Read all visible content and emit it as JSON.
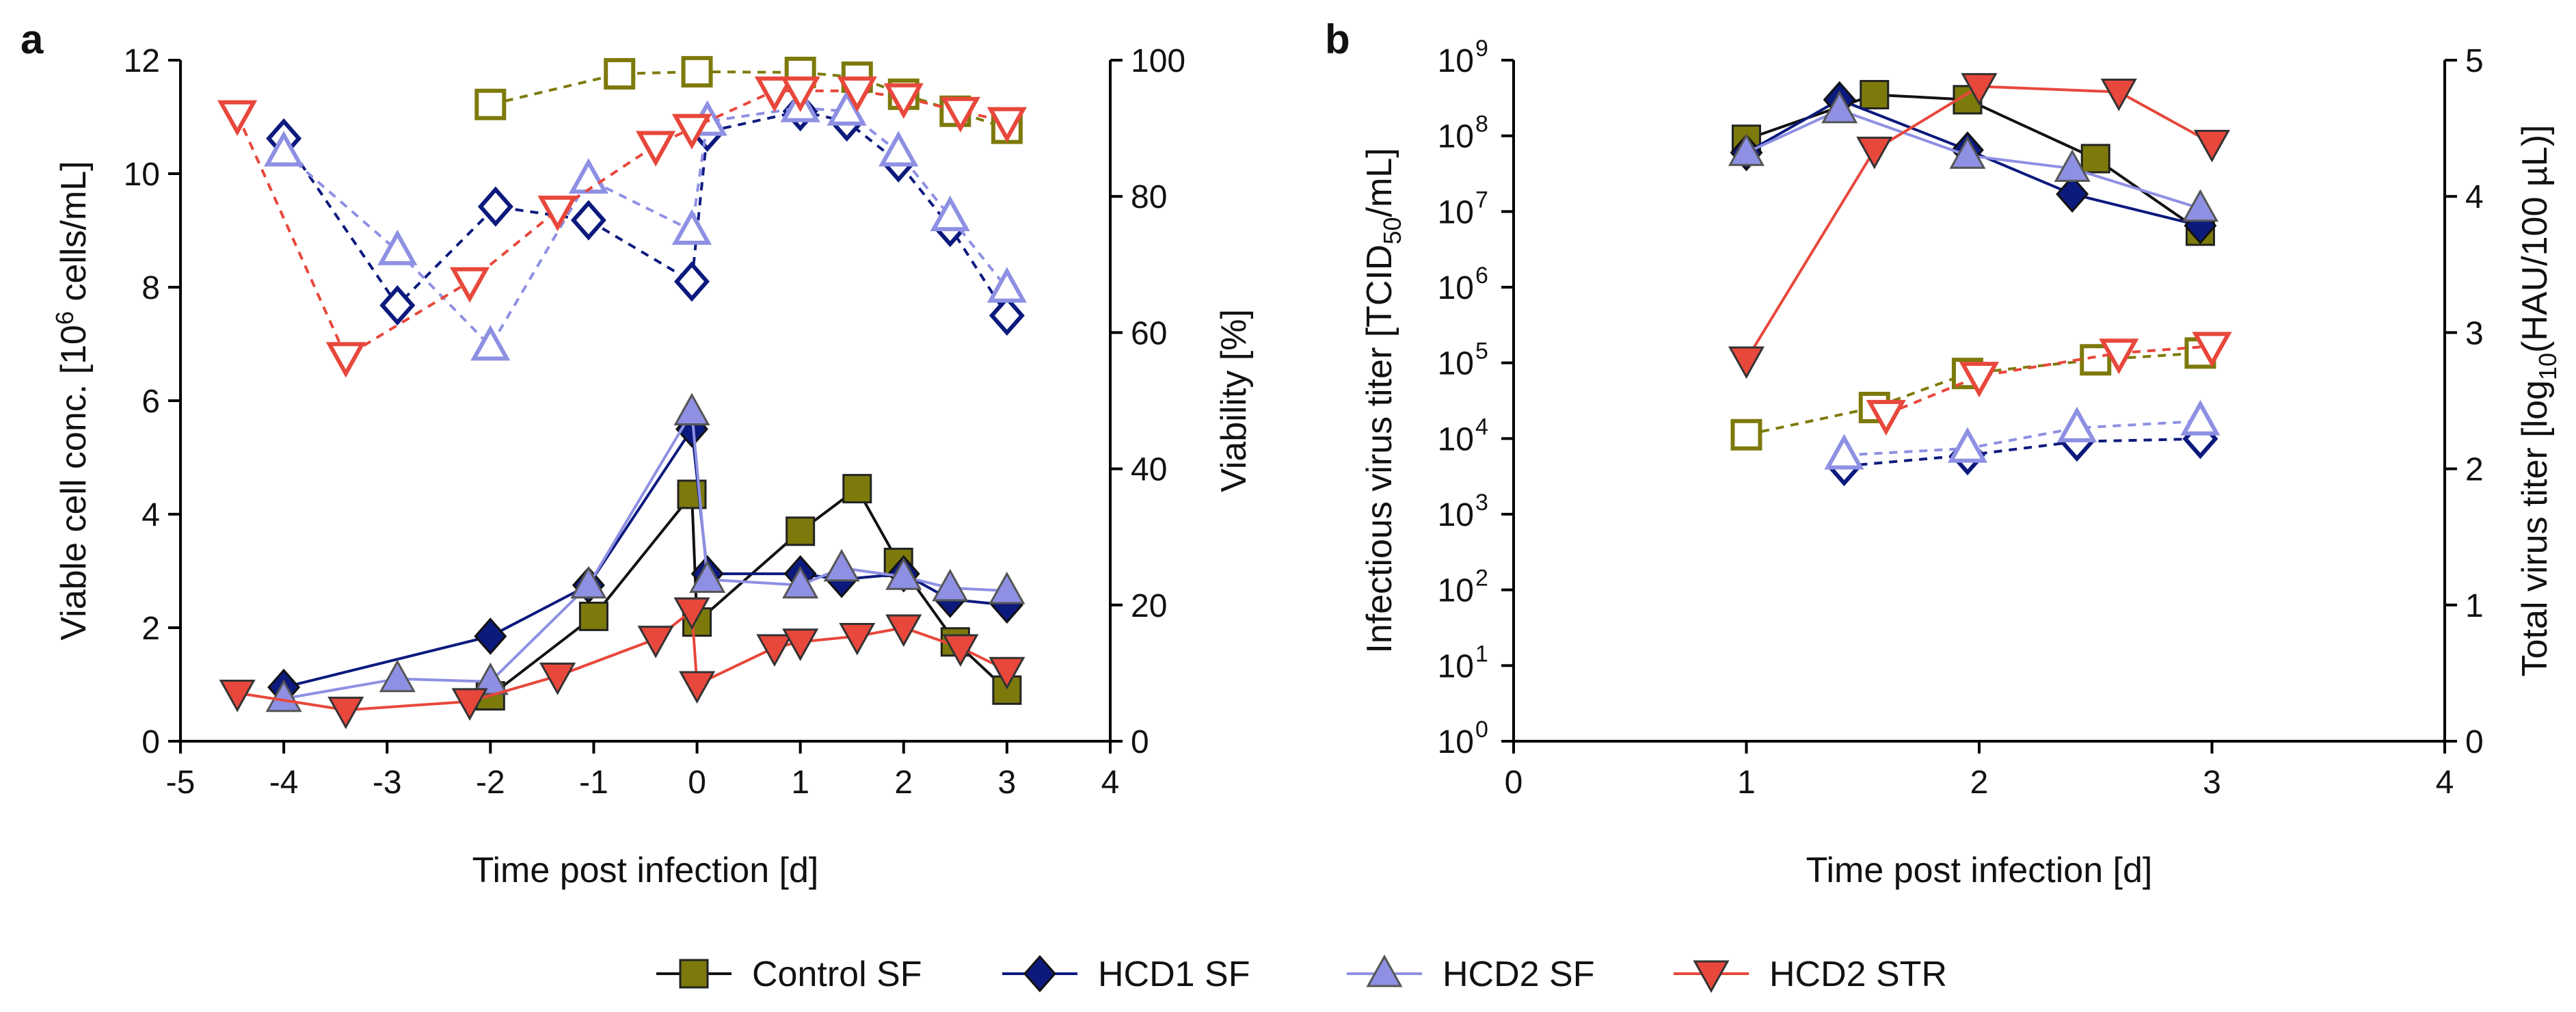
{
  "panel_labels": {
    "a": "a",
    "b": "b"
  },
  "axes": {
    "a": {
      "xlabel": "Time post infection [d]",
      "ylabel_left": "Viable cell conc. [10",
      "ylabel_left_sup": "6",
      "ylabel_left_tail": " cells/mL]",
      "ylabel_right": "Viability [%]"
    },
    "b": {
      "xlabel": "Time post infection [d]",
      "ylabel_left": "Infectious virus titer [TCID",
      "ylabel_left_sub": "50",
      "ylabel_left_tail": "/mL]",
      "ylabel_right": "Total virus titer [log",
      "ylabel_right_sub": "10",
      "ylabel_right_tail": "(HAU/100 µL)]"
    }
  },
  "legend": [
    {
      "label": "Control  SF",
      "color": "#7d7a0c",
      "marker": "square"
    },
    {
      "label": "HCD1 SF",
      "color": "#0c1a7d",
      "marker": "diamond"
    },
    {
      "label": "HCD2 SF",
      "color": "#8e90e3",
      "marker": "triangle-up"
    },
    {
      "label": "HCD2 STR",
      "color": "#e8473b",
      "marker": "triangle-down"
    }
  ],
  "chart_data": [
    {
      "type": "line",
      "title": "a",
      "xlabel": "Time post infection [d]",
      "ylabel": "Viable cell conc. [10^6 cells/mL]",
      "y2label": "Viability [%]",
      "xlim": [
        -5,
        4
      ],
      "ylim": [
        0,
        12
      ],
      "y2lim": [
        0,
        100
      ],
      "xticks": [
        "-5",
        "-4",
        "-3",
        "-2",
        "-1",
        "0",
        "1",
        "2",
        "3",
        "4"
      ],
      "yticks": [
        "0",
        "2",
        "4",
        "6",
        "8",
        "10",
        "12"
      ],
      "y2ticks": [
        "0",
        "20",
        "40",
        "60",
        "80",
        "100"
      ],
      "series": [
        {
          "name": "Control  SF",
          "measure": "viable cells",
          "axis": "left",
          "style": "solid",
          "x": [
            -2,
            -1,
            -0.05,
            0,
            1,
            1.55,
            1.95,
            2.5,
            3
          ],
          "y": [
            0.8,
            2.2,
            4.35,
            2.1,
            3.7,
            4.45,
            3.15,
            1.75,
            0.9
          ]
        },
        {
          "name": "HCD1 SF",
          "measure": "viable cells",
          "axis": "left",
          "style": "solid",
          "x": [
            -4,
            -2,
            -1.05,
            -0.05,
            0.1,
            1,
            1.4,
            2,
            2.45,
            3
          ],
          "y": [
            0.95,
            1.85,
            2.75,
            5.5,
            2.95,
            2.95,
            2.85,
            2.95,
            2.5,
            2.4
          ]
        },
        {
          "name": "HCD2 SF",
          "measure": "viable cells",
          "axis": "left",
          "style": "solid",
          "x": [
            -4,
            -2.9,
            -2,
            -1.05,
            -0.05,
            0.1,
            1,
            1.4,
            2,
            2.45,
            3
          ],
          "y": [
            0.75,
            1.1,
            1.05,
            2.75,
            5.8,
            2.85,
            2.75,
            3.05,
            2.9,
            2.7,
            2.65
          ]
        },
        {
          "name": "HCD2 STR",
          "measure": "viable cells",
          "axis": "left",
          "style": "solid",
          "x": [
            -4.45,
            -3.4,
            -2.2,
            -1.35,
            -0.4,
            -0.05,
            0,
            0.75,
            1,
            1.55,
            2,
            2.55,
            3
          ],
          "y": [
            0.85,
            0.55,
            0.7,
            1.15,
            1.8,
            2.3,
            1.0,
            1.65,
            1.75,
            1.85,
            2.0,
            1.65,
            1.25
          ]
        },
        {
          "name": "Control  SF",
          "measure": "viability",
          "axis": "right",
          "style": "dashed",
          "x": [
            -2,
            -0.75,
            0,
            1,
            1.55,
            2,
            2.5,
            3
          ],
          "y": [
            93.5,
            98,
            98.3,
            98.2,
            97.5,
            95,
            92.5,
            90
          ]
        },
        {
          "name": "HCD1 SF",
          "measure": "viability",
          "axis": "right",
          "style": "dashed",
          "x": [
            -4,
            -2.9,
            -1.95,
            -1.05,
            -0.05,
            0.1,
            1,
            1.45,
            1.95,
            2.45,
            3
          ],
          "y": [
            88.5,
            64,
            78.5,
            76.5,
            67.5,
            89.5,
            92.5,
            91,
            85,
            75.5,
            62.5
          ]
        },
        {
          "name": "HCD2 SF",
          "measure": "viability",
          "axis": "right",
          "style": "dashed",
          "x": [
            -4,
            -2.9,
            -2,
            -1.05,
            -0.05,
            0.1,
            1,
            1.45,
            1.95,
            2.45,
            3
          ],
          "y": [
            86.5,
            72,
            58,
            82.5,
            75,
            91,
            93,
            92.5,
            86.5,
            77,
            66.5
          ]
        },
        {
          "name": "HCD2 STR",
          "measure": "viability",
          "axis": "right",
          "style": "dashed",
          "x": [
            -4.45,
            -3.4,
            -2.2,
            -1.35,
            -0.4,
            -0.05,
            0.75,
            1,
            1.55,
            2,
            2.55,
            3
          ],
          "y": [
            92,
            56.5,
            67.5,
            78,
            87.5,
            90,
            95.5,
            95.5,
            95.5,
            94.5,
            92.5,
            91
          ]
        }
      ]
    },
    {
      "type": "line",
      "title": "b",
      "xlabel": "Time post infection [d]",
      "ylabel": "Infectious virus titer [TCID50/mL]",
      "y2label": "Total virus titer [log10(HAU/100 µL)]",
      "xlim": [
        0,
        4
      ],
      "yscale": "log",
      "ylim": [
        1,
        1000000000
      ],
      "y2lim": [
        0,
        5
      ],
      "xticks": [
        "0",
        "1",
        "2",
        "3",
        "4"
      ],
      "yticks_base": [
        "10",
        "10",
        "10",
        "10",
        "10",
        "10",
        "10",
        "10",
        "10",
        "10"
      ],
      "yticks_exp": [
        "0",
        "1",
        "2",
        "3",
        "4",
        "5",
        "6",
        "7",
        "8",
        "9"
      ],
      "y2ticks": [
        "0",
        "1",
        "2",
        "3",
        "4",
        "5"
      ],
      "series": [
        {
          "name": "Control  SF",
          "measure": "infectious titer",
          "axis": "left",
          "style": "solid",
          "x": [
            1,
            1.55,
            1.95,
            2.5,
            2.95
          ],
          "y": [
            90000000,
            350000000,
            300000000,
            50000000,
            5500000
          ]
        },
        {
          "name": "HCD1 SF",
          "measure": "infectious titer",
          "axis": "left",
          "style": "solid",
          "x": [
            1,
            1.4,
            1.95,
            2.4,
            2.95
          ],
          "y": [
            60000000,
            300000000,
            65000000,
            17000000,
            6500000
          ]
        },
        {
          "name": "HCD2 SF",
          "measure": "infectious titer",
          "axis": "left",
          "style": "solid",
          "x": [
            1,
            1.4,
            1.95,
            2.4,
            2.95
          ],
          "y": [
            60000000,
            220000000,
            55000000,
            37000000,
            11000000
          ]
        },
        {
          "name": "HCD2 STR",
          "measure": "infectious titer",
          "axis": "left",
          "style": "solid",
          "x": [
            1,
            1.55,
            2,
            2.6,
            3
          ],
          "y": [
            110000,
            65000000,
            450000000,
            380000000,
            80000000
          ]
        },
        {
          "name": "Control  SF",
          "measure": "total titer",
          "axis": "right",
          "style": "dashed",
          "x": [
            1,
            1.55,
            1.95,
            2.5,
            2.95
          ],
          "y": [
            2.25,
            2.45,
            2.7,
            2.8,
            2.85
          ]
        },
        {
          "name": "HCD1 SF",
          "measure": "total titer",
          "axis": "right",
          "style": "dashed",
          "x": [
            1.42,
            1.95,
            2.42,
            2.95
          ],
          "y": [
            2.02,
            2.1,
            2.2,
            2.22
          ]
        },
        {
          "name": "HCD2 SF",
          "measure": "total titer",
          "axis": "right",
          "style": "dashed",
          "x": [
            1.42,
            1.95,
            2.42,
            2.95
          ],
          "y": [
            2.1,
            2.15,
            2.3,
            2.35
          ]
        },
        {
          "name": "HCD2 STR",
          "measure": "total titer",
          "axis": "right",
          "style": "dashed",
          "x": [
            1.6,
            2,
            2.6,
            3
          ],
          "y": [
            2.4,
            2.68,
            2.85,
            2.9
          ]
        }
      ]
    }
  ]
}
